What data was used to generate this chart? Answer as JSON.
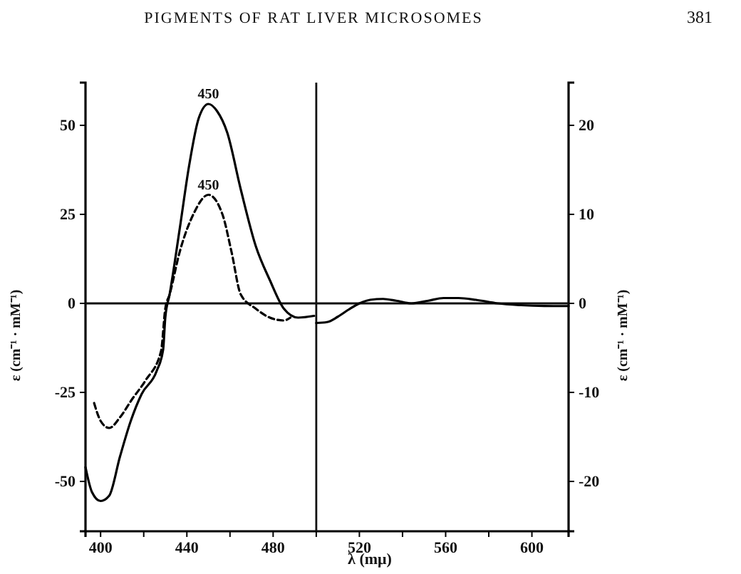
{
  "chart_data": {
    "type": "line",
    "title": "PIGMENTS OF RAT LIVER MICROSOMES",
    "xlabel": "λ (mμ)",
    "ylabel": "ε (cm⁻¹ · mM⁻¹)",
    "y2label": "ε (cm⁻¹ · mM⁻¹)",
    "annotations": [
      "381",
      {
        "text": "450",
        "x": 450,
        "y": 56
      },
      {
        "text": "450",
        "x": 450,
        "y": 30.5
      }
    ],
    "xlim": [
      393,
      617
    ],
    "xticks": [
      400,
      {
        "value": 420,
        "label": null
      },
      440,
      {
        "value": 460,
        "label": null
      },
      480,
      {
        "value": 500,
        "label": null
      },
      520,
      {
        "value": 540,
        "label": null
      },
      560,
      {
        "value": 580,
        "label": null
      },
      600
    ],
    "ylim": [
      -64,
      62
    ],
    "yticks": [
      -50,
      -25,
      0,
      25,
      50
    ],
    "y2lim": [
      -25.6,
      24.8
    ],
    "y2ticks": [
      -20,
      -10,
      0,
      10,
      20
    ],
    "grid": false,
    "ref_lines": [
      {
        "axis": "x",
        "value": 500,
        "label": null
      },
      {
        "axis": "y",
        "value": 0,
        "label": null
      }
    ],
    "series": [
      {
        "color": "#000000",
        "line_style": "solid",
        "x": [
          393,
          396,
          400,
          404,
          409,
          414,
          419,
          426,
          429,
          430,
          432,
          436.7,
          441,
          445.5,
          450,
          454,
          458.7,
          465,
          472,
          478.5,
          485,
          491.6,
          499
        ],
        "values": [
          -46,
          -53,
          -55.5,
          -54,
          -43,
          -33,
          -25.5,
          -19,
          -13,
          -4,
          2.5,
          21,
          38.5,
          52,
          56,
          54,
          48,
          32,
          16,
          6.5,
          -1.5,
          -4,
          -3.5
        ]
      },
      {
        "color": "#000000",
        "line_style": "dashed",
        "x": [
          397,
          400,
          404,
          409,
          414.5,
          421,
          428,
          430,
          432,
          436.7,
          443,
          450,
          456.5,
          460.7,
          465,
          472,
          478.5,
          485,
          488
        ],
        "values": [
          -28,
          -33,
          -35,
          -32,
          -27,
          -21.5,
          -13.5,
          -1.5,
          2.5,
          14.5,
          25,
          30.5,
          25,
          14.5,
          2.5,
          -1.5,
          -4,
          -4.8,
          -4
        ]
      },
      {
        "color": "#000000",
        "line_style": "solid",
        "axis": "y2",
        "x": [
          500,
          505,
          510,
          515,
          520,
          525,
          531,
          537,
          544,
          552,
          559,
          566,
          574,
          584,
          595,
          610,
          617
        ],
        "values": [
          -2.2,
          -2.1,
          -1.5,
          -0.7,
          0,
          0.4,
          0.5,
          0.3,
          0,
          0.3,
          0.6,
          0.6,
          0.4,
          0,
          -0.2,
          -0.3,
          -0.3
        ]
      }
    ]
  }
}
